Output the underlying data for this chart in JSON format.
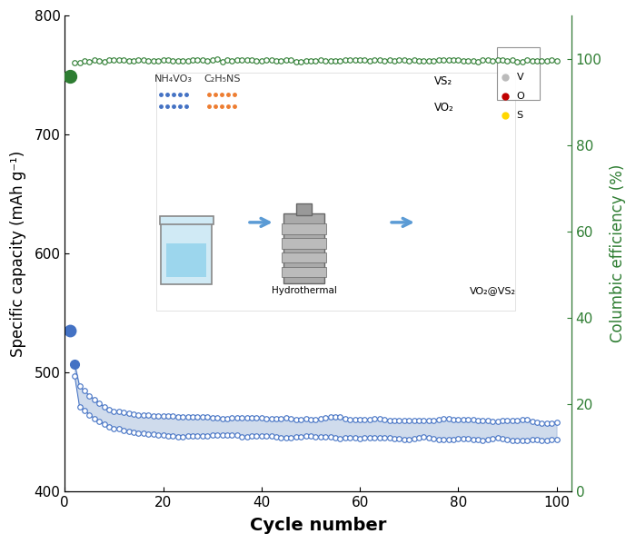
{
  "xlabel": "Cycle number",
  "ylabel_left": "Specific capacity (mAh g⁻¹)",
  "ylabel_right": "Columbic efficiency (%)",
  "xlim": [
    0,
    103
  ],
  "ylim_left": [
    400,
    800
  ],
  "ylim_right": [
    0,
    110
  ],
  "yticks_left": [
    400,
    500,
    600,
    700,
    800
  ],
  "yticks_right": [
    0,
    20,
    40,
    60,
    80,
    100
  ],
  "xticks": [
    0,
    20,
    40,
    60,
    80,
    100
  ],
  "blue_color": "#4472C4",
  "blue_fill_color": "#A8BEDE",
  "green_color": "#2E7D32",
  "background_color": "#ffffff",
  "green_isolated_ce": 96.0,
  "green_main_ce_start": 99.0,
  "green_main_ce_stable": 99.6,
  "blue_pt1_charge": 535,
  "blue_pt1_discharge": 525,
  "blue_pt2_charge": 507,
  "blue_pt2_discharge": 497,
  "blue_stable_upper": 462,
  "blue_stable_lower": 447,
  "blue_early_upper": 490,
  "blue_early_lower": 474
}
